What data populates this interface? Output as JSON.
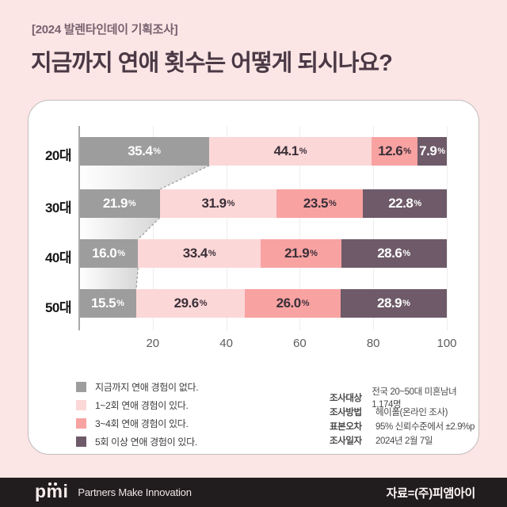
{
  "header": {
    "kicker": "[2024 발렌타인데이 기획조사]",
    "title": "지금까지 연애 횟수는 어떻게 되시나요?"
  },
  "chart_data": {
    "type": "bar",
    "stacked": true,
    "orientation": "horizontal",
    "title": "지금까지 연애 횟수는 어떻게 되시나요?",
    "categories": [
      "20대",
      "30대",
      "40대",
      "50대"
    ],
    "series": [
      {
        "name": "지금까지 연애 경험이 없다.",
        "color": "#9d9d9d",
        "label_color": "#ffffff",
        "values": [
          35.4,
          21.9,
          16.0,
          15.5
        ]
      },
      {
        "name": "1~2회 연애 경험이 있다.",
        "color": "#fcd7d7",
        "label_color": "#3a2f38",
        "values": [
          44.1,
          31.9,
          33.4,
          29.6
        ]
      },
      {
        "name": "3~4회 연애 경험이 있다.",
        "color": "#f8a2a2",
        "label_color": "#3a2f38",
        "values": [
          12.6,
          23.5,
          21.9,
          26.0
        ]
      },
      {
        "name": "5회 이상 연애 경험이 있다.",
        "color": "#6e5a68",
        "label_color": "#ffffff",
        "values": [
          7.9,
          22.8,
          28.6,
          28.9
        ]
      }
    ],
    "x_ticks": [
      "20",
      "40",
      "60",
      "80",
      "100"
    ],
    "xlim": [
      0,
      100
    ],
    "value_suffix": "%",
    "grid": true,
    "legend_position": "bottom-left"
  },
  "survey_info": [
    {
      "label": "조사대상",
      "value": "전국 20~50대 미혼남녀 1,174명"
    },
    {
      "label": "조사방법",
      "value": "헤이폴(온라인 조사)"
    },
    {
      "label": "표본오차",
      "value": "95% 신뢰수준에서 ±2.9%p"
    },
    {
      "label": "조사일자",
      "value": "2024년 2월 7일"
    }
  ],
  "footer": {
    "logo": "pmi",
    "tagline": "Partners Make Innovation",
    "source": "자료=(주)피앰아이"
  },
  "colors": {
    "page_background": "#fbe5e5",
    "card_background": "#ffffff",
    "footer_background": "#211d1e",
    "connector_gradient_end": "#d6d6d6"
  }
}
